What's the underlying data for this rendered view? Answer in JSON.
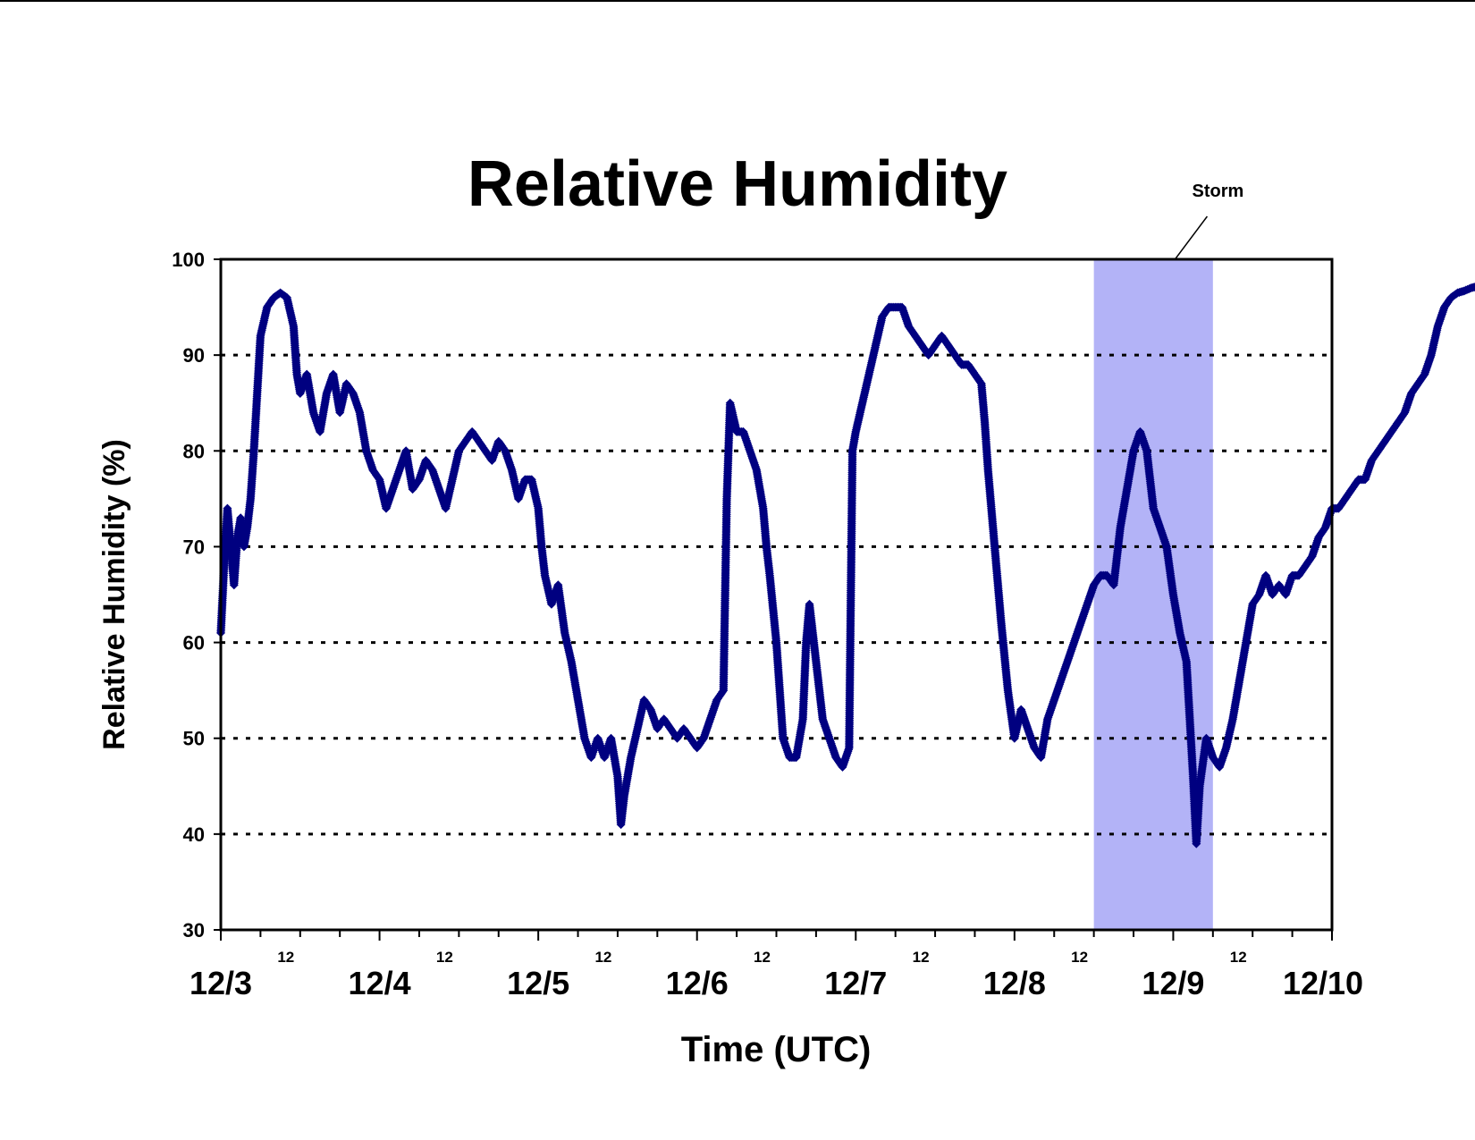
{
  "chart_data": {
    "type": "scatter",
    "title": "Relative Humidity",
    "xlabel": "Time (UTC)",
    "ylabel": "Relative Humidity (%)",
    "ylim": [
      30,
      100
    ],
    "yticks": [
      30,
      40,
      50,
      60,
      70,
      80,
      90,
      100
    ],
    "xlim": [
      "12/3 00:00",
      "12/10 00:00"
    ],
    "day_labels": [
      "12/3",
      "12/4",
      "12/5",
      "12/6",
      "12/7",
      "12/8",
      "12/9",
      "12/10"
    ],
    "midday_label": "12",
    "grid": "horizontal dotted",
    "legend": "none",
    "colors": {
      "series": "#000080",
      "shade": "#b3b3f7"
    },
    "annotations": [
      {
        "text": "Storm",
        "x_start": "12/8 12:00",
        "x_end": "12/9 06:00",
        "x_pointer": "12/9 00:00",
        "y_pointer": 100
      }
    ],
    "series": [
      {
        "x_unit": "hours since 12/3 00:00",
        "points": [
          [
            0,
            61
          ],
          [
            0.5,
            68
          ],
          [
            1,
            74
          ],
          [
            1.5,
            70
          ],
          [
            2,
            66
          ],
          [
            2.5,
            71
          ],
          [
            3,
            73
          ],
          [
            3.5,
            70
          ],
          [
            4,
            72
          ],
          [
            4.5,
            75
          ],
          [
            5,
            80
          ],
          [
            6,
            92
          ],
          [
            7,
            95
          ],
          [
            8,
            96
          ],
          [
            9,
            96.5
          ],
          [
            10,
            96
          ],
          [
            11,
            93
          ],
          [
            11.5,
            88
          ],
          [
            12,
            86
          ],
          [
            13,
            88
          ],
          [
            14,
            84
          ],
          [
            15,
            82
          ],
          [
            16,
            86
          ],
          [
            17,
            88
          ],
          [
            18,
            84
          ],
          [
            19,
            87
          ],
          [
            20,
            86
          ],
          [
            21,
            84
          ],
          [
            22,
            80
          ],
          [
            23,
            78
          ],
          [
            24,
            77
          ],
          [
            25,
            74
          ],
          [
            26,
            76
          ],
          [
            27,
            78
          ],
          [
            28,
            80
          ],
          [
            29,
            76
          ],
          [
            30,
            77
          ],
          [
            31,
            79
          ],
          [
            32,
            78
          ],
          [
            33,
            76
          ],
          [
            34,
            74
          ],
          [
            35,
            77
          ],
          [
            36,
            80
          ],
          [
            37,
            81
          ],
          [
            38,
            82
          ],
          [
            39,
            81
          ],
          [
            40,
            80
          ],
          [
            41,
            79
          ],
          [
            42,
            81
          ],
          [
            43,
            80
          ],
          [
            44,
            78
          ],
          [
            45,
            75
          ],
          [
            46,
            77
          ],
          [
            47,
            77
          ],
          [
            48,
            74
          ],
          [
            48.5,
            70
          ],
          [
            49,
            67
          ],
          [
            50,
            64
          ],
          [
            51,
            66
          ],
          [
            52,
            61
          ],
          [
            53,
            58
          ],
          [
            54,
            54
          ],
          [
            55,
            50
          ],
          [
            56,
            48
          ],
          [
            57,
            50
          ],
          [
            58,
            48
          ],
          [
            59,
            50
          ],
          [
            60,
            46
          ],
          [
            60.5,
            41
          ],
          [
            61,
            44
          ],
          [
            62,
            48
          ],
          [
            63,
            51
          ],
          [
            64,
            54
          ],
          [
            65,
            53
          ],
          [
            66,
            51
          ],
          [
            67,
            52
          ],
          [
            68,
            51
          ],
          [
            69,
            50
          ],
          [
            70,
            51
          ],
          [
            71,
            50
          ],
          [
            72,
            49
          ],
          [
            73,
            50
          ],
          [
            74,
            52
          ],
          [
            75,
            54
          ],
          [
            76,
            55
          ],
          [
            76.5,
            75
          ],
          [
            77,
            85
          ],
          [
            78,
            82
          ],
          [
            79,
            82
          ],
          [
            80,
            80
          ],
          [
            81,
            78
          ],
          [
            82,
            74
          ],
          [
            82.5,
            70
          ],
          [
            83,
            67
          ],
          [
            84,
            60
          ],
          [
            84.5,
            55
          ],
          [
            85,
            50
          ],
          [
            86,
            48
          ],
          [
            87,
            48
          ],
          [
            88,
            52
          ],
          [
            88.5,
            60
          ],
          [
            89,
            64
          ],
          [
            90,
            58
          ],
          [
            91,
            52
          ],
          [
            92,
            50
          ],
          [
            93,
            48
          ],
          [
            94,
            47
          ],
          [
            95,
            49
          ],
          [
            95.5,
            80
          ],
          [
            96,
            82
          ],
          [
            97,
            85
          ],
          [
            98,
            88
          ],
          [
            99,
            91
          ],
          [
            100,
            94
          ],
          [
            101,
            95
          ],
          [
            102,
            95
          ],
          [
            103,
            95
          ],
          [
            104,
            93
          ],
          [
            105,
            92
          ],
          [
            106,
            91
          ],
          [
            107,
            90
          ],
          [
            108,
            91
          ],
          [
            109,
            92
          ],
          [
            110,
            91
          ],
          [
            111,
            90
          ],
          [
            112,
            89
          ],
          [
            113,
            89
          ],
          [
            114,
            88
          ],
          [
            115,
            87
          ],
          [
            115.5,
            83
          ],
          [
            116,
            78
          ],
          [
            117,
            70
          ],
          [
            118,
            62
          ],
          [
            119,
            55
          ],
          [
            120,
            50
          ],
          [
            121,
            53
          ],
          [
            122,
            51
          ],
          [
            123,
            49
          ],
          [
            124,
            48
          ],
          [
            125,
            52
          ],
          [
            126,
            54
          ],
          [
            127,
            56
          ],
          [
            128,
            58
          ],
          [
            129,
            60
          ],
          [
            130,
            62
          ],
          [
            131,
            64
          ],
          [
            132,
            66
          ],
          [
            133,
            67
          ],
          [
            134,
            67
          ],
          [
            135,
            66
          ],
          [
            136,
            72
          ],
          [
            137,
            76
          ],
          [
            138,
            80
          ],
          [
            139,
            82
          ],
          [
            140,
            80
          ],
          [
            141,
            74
          ],
          [
            142,
            72
          ],
          [
            143,
            70
          ],
          [
            144,
            65
          ],
          [
            145,
            61
          ],
          [
            146,
            58
          ],
          [
            146.5,
            52
          ],
          [
            147,
            46
          ],
          [
            147.5,
            39
          ],
          [
            148,
            45
          ],
          [
            149,
            50
          ],
          [
            150,
            48
          ],
          [
            151,
            47
          ],
          [
            152,
            49
          ],
          [
            153,
            52
          ],
          [
            154,
            56
          ],
          [
            155,
            60
          ],
          [
            156,
            64
          ],
          [
            157,
            65
          ],
          [
            158,
            67
          ],
          [
            159,
            65
          ],
          [
            160,
            66
          ],
          [
            161,
            65
          ],
          [
            162,
            67
          ],
          [
            163,
            67
          ],
          [
            164,
            68
          ],
          [
            165,
            69
          ],
          [
            166,
            71
          ],
          [
            167,
            72
          ],
          [
            168,
            74
          ],
          [
            169,
            74
          ],
          [
            170,
            75
          ],
          [
            171,
            76
          ],
          [
            172,
            77
          ],
          [
            173,
            77
          ],
          [
            174,
            79
          ],
          [
            175,
            80
          ],
          [
            176,
            81
          ],
          [
            177,
            82
          ],
          [
            178,
            83
          ],
          [
            179,
            84
          ],
          [
            180,
            86
          ],
          [
            181,
            87
          ],
          [
            182,
            88
          ],
          [
            183,
            90
          ],
          [
            184,
            93
          ],
          [
            185,
            95
          ],
          [
            186,
            96
          ],
          [
            187,
            96.5
          ],
          [
            188,
            96.7
          ],
          [
            189,
            97
          ],
          [
            190,
            97.2
          ],
          [
            191,
            97.4
          ],
          [
            192,
            97.5
          ],
          [
            193,
            97.5
          ],
          [
            194,
            97.5
          ],
          [
            195,
            97.4
          ],
          [
            196,
            97.2
          ],
          [
            197,
            95
          ],
          [
            198,
            94
          ],
          [
            199,
            94
          ],
          [
            200,
            94.5
          ],
          [
            201,
            95
          ],
          [
            202,
            96
          ],
          [
            203,
            95
          ],
          [
            204,
            94
          ],
          [
            205,
            90
          ],
          [
            206,
            88
          ],
          [
            207,
            86
          ],
          [
            208,
            82
          ],
          [
            209,
            79
          ],
          [
            210,
            78
          ],
          [
            211,
            80
          ],
          [
            212,
            84
          ],
          [
            213,
            89
          ],
          [
            214,
            93
          ],
          [
            215,
            95
          ],
          [
            216,
            95
          ],
          [
            217,
            94
          ],
          [
            218,
            93
          ],
          [
            219,
            92
          ],
          [
            220,
            91
          ],
          [
            221,
            90
          ],
          [
            222,
            91
          ],
          [
            223,
            91.5
          ]
        ]
      }
    ]
  }
}
